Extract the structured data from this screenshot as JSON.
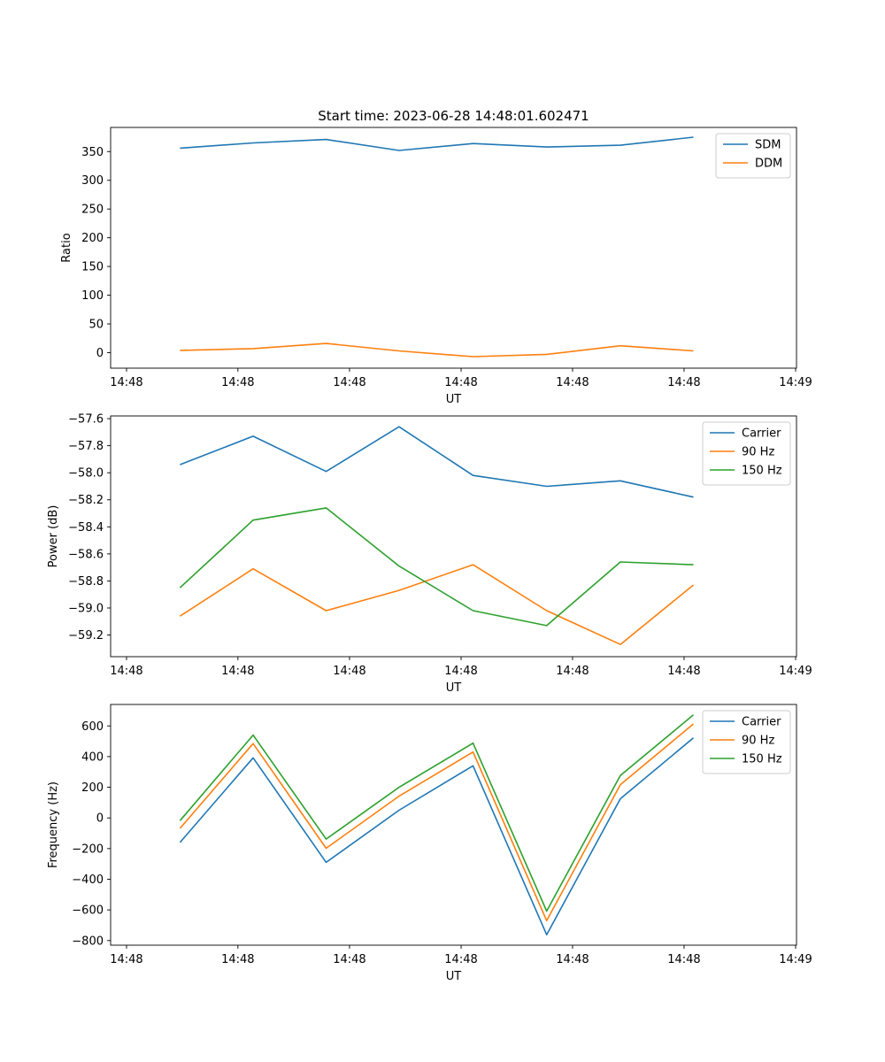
{
  "colors": {
    "c0": "#1f77b4",
    "c1": "#ff7f0e",
    "c2": "#2ca02c",
    "axis": "#000000",
    "legend_border": "#cccccc"
  },
  "chart_data": [
    {
      "type": "line",
      "title": "Start time: 2023-06-28 14:48:01.602471",
      "xlabel": "UT",
      "ylabel": "Ratio",
      "ylim": [
        -27,
        392
      ],
      "yticks": [
        0,
        50,
        100,
        150,
        200,
        250,
        300,
        350
      ],
      "xticks": [
        "14:48",
        "14:48",
        "14:48",
        "14:48",
        "14:48",
        "14:48",
        "14:49"
      ],
      "legend": "top-right",
      "grid": false,
      "series": [
        {
          "name": "SDM",
          "values": [
            356,
            365,
            371,
            352,
            364,
            358,
            361,
            375
          ]
        },
        {
          "name": "DDM",
          "values": [
            4,
            7,
            16,
            3,
            -7,
            -3,
            12,
            3
          ]
        }
      ]
    },
    {
      "type": "line",
      "title": "",
      "xlabel": "UT",
      "ylabel": "Power (dB)",
      "ylim": [
        -59.36,
        -57.58
      ],
      "yticks": [
        -59.2,
        -59.0,
        -58.8,
        -58.6,
        -58.4,
        -58.2,
        -58.0,
        -57.8,
        -57.6
      ],
      "ytick_labels": [
        "−59.2",
        "−59.0",
        "−58.8",
        "−58.6",
        "−58.4",
        "−58.2",
        "−58.0",
        "−57.8",
        "−57.6"
      ],
      "xticks": [
        "14:48",
        "14:48",
        "14:48",
        "14:48",
        "14:48",
        "14:48",
        "14:49"
      ],
      "legend": "top-right",
      "grid": false,
      "series": [
        {
          "name": "Carrier",
          "values": [
            -57.94,
            -57.73,
            -57.99,
            -57.66,
            -58.02,
            -58.1,
            -58.06,
            -58.18
          ]
        },
        {
          "name": "90 Hz",
          "values": [
            -59.06,
            -58.71,
            -59.02,
            -58.87,
            -58.68,
            -59.02,
            -59.27,
            -58.83
          ]
        },
        {
          "name": "150 Hz",
          "values": [
            -58.85,
            -58.35,
            -58.26,
            -58.69,
            -59.02,
            -59.13,
            -58.66,
            -58.68
          ]
        }
      ]
    },
    {
      "type": "line",
      "title": "",
      "xlabel": "UT",
      "ylabel": "Frequency (Hz)",
      "ylim": [
        -830,
        740
      ],
      "yticks": [
        -800,
        -600,
        -400,
        -200,
        0,
        200,
        400,
        600
      ],
      "ytick_labels": [
        "−800",
        "−600",
        "−400",
        "−200",
        "0",
        "200",
        "400",
        "600"
      ],
      "xticks": [
        "14:48",
        "14:48",
        "14:48",
        "14:48",
        "14:48",
        "14:48",
        "14:49"
      ],
      "legend": "top-right",
      "grid": false,
      "series": [
        {
          "name": "Carrier",
          "values": [
            -160,
            392,
            -290,
            50,
            340,
            -762,
            125,
            522
          ]
        },
        {
          "name": "90 Hz",
          "values": [
            -68,
            485,
            -198,
            142,
            430,
            -670,
            217,
            613
          ]
        },
        {
          "name": "150 Hz",
          "values": [
            -18,
            540,
            -138,
            200,
            488,
            -608,
            277,
            672
          ]
        }
      ]
    }
  ]
}
